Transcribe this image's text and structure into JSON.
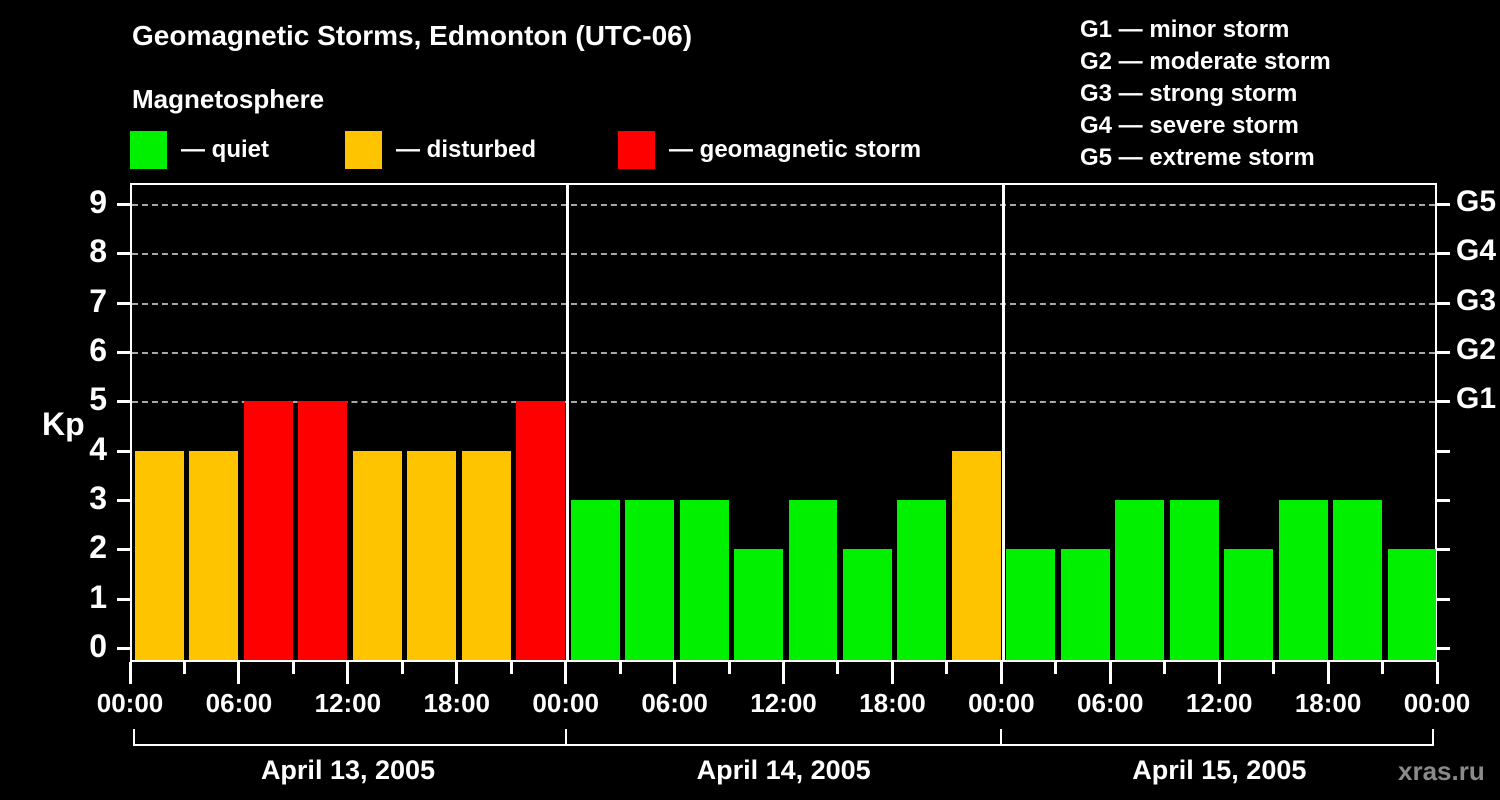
{
  "header": {
    "title": "Geomagnetic Storms, Edmonton (UTC-06)",
    "subtitle": "Magnetosphere"
  },
  "legend": {
    "items": [
      {
        "name": "quiet",
        "label": "— quiet",
        "color": "#00f000"
      },
      {
        "name": "disturbed",
        "label": "— disturbed",
        "color": "#ffc400"
      },
      {
        "name": "geomagnetic-storm",
        "label": "— geomagnetic storm",
        "color": "#ff0000"
      }
    ]
  },
  "g_scale_legend": {
    "items": [
      "G1 — minor storm",
      "G2 — moderate storm",
      "G3 — strong storm",
      "G4 — severe storm",
      "G5 — extreme storm"
    ]
  },
  "chart_data": {
    "type": "bar",
    "ylabel": "Kp",
    "ylim": [
      0,
      9
    ],
    "y_ticks": [
      0,
      1,
      2,
      3,
      4,
      5,
      6,
      7,
      8,
      9
    ],
    "grid_levels": [
      5,
      6,
      7,
      8,
      9
    ],
    "right_axis_labels": [
      {
        "label": "G1",
        "kp": 5
      },
      {
        "label": "G2",
        "kp": 6
      },
      {
        "label": "G3",
        "kp": 7
      },
      {
        "label": "G4",
        "kp": 8
      },
      {
        "label": "G5",
        "kp": 9
      }
    ],
    "interval_hours": 3,
    "time_tick_labels": [
      "00:00",
      "06:00",
      "12:00",
      "18:00",
      "00:00",
      "06:00",
      "12:00",
      "18:00",
      "00:00",
      "06:00",
      "12:00",
      "18:00",
      "00:00"
    ],
    "days": [
      {
        "date": "April 13, 2005",
        "values": [
          4,
          4,
          5,
          5,
          4,
          4,
          4,
          5
        ]
      },
      {
        "date": "April 14, 2005",
        "values": [
          3,
          3,
          3,
          2,
          3,
          2,
          3,
          4
        ]
      },
      {
        "date": "April 15, 2005",
        "values": [
          2,
          2,
          3,
          3,
          2,
          3,
          3,
          2
        ]
      }
    ],
    "color_rules": {
      "quiet_max": 3,
      "disturbed_max": 4
    },
    "colors": {
      "quiet": "#00f000",
      "disturbed": "#ffc400",
      "storm": "#ff0000"
    },
    "grid": true,
    "legend_position": "top"
  },
  "footer": {
    "watermark": "xras.ru"
  }
}
